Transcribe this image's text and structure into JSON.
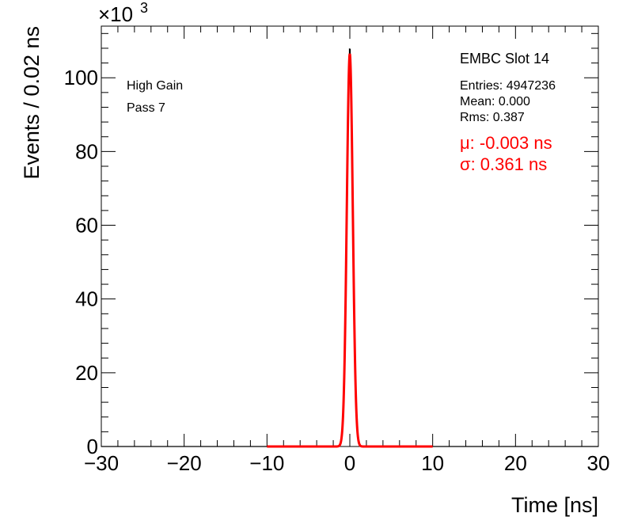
{
  "chart_data": {
    "type": "histogram",
    "xlabel": "Time [ns]",
    "ylabel": "Events / 0.02 ns",
    "y_multiplier_label": "×10",
    "y_multiplier_exp": "3",
    "xlim": [
      -30,
      30
    ],
    "ylim": [
      0,
      114
    ],
    "x_ticks": [
      -30,
      -20,
      -10,
      0,
      10,
      20,
      30
    ],
    "x_tick_labels": [
      "−30",
      "−20",
      "−10",
      "0",
      "10",
      "20",
      "30"
    ],
    "y_ticks": [
      0,
      20,
      40,
      60,
      80,
      100
    ],
    "y_tick_labels": [
      "0",
      "20",
      "40",
      "60",
      "80",
      "100"
    ],
    "bin_width_ns": 0.02,
    "peak_value_k": 108,
    "histogram_color": "#000000",
    "fit_color": "#ff0000",
    "fit_range": [
      -10,
      10
    ],
    "fit": {
      "mu": -0.003,
      "sigma": 0.361
    },
    "text_labels": [
      "High Gain",
      "Pass 7"
    ],
    "stats": {
      "title": "EMBC Slot 14",
      "entries": "Entries: 4947236",
      "mean": "Mean: 0.000",
      "rms": "Rms: 0.387"
    },
    "fit_labels": {
      "mu": "μ: -0.003 ns",
      "sigma": "σ: 0.361 ns"
    }
  }
}
